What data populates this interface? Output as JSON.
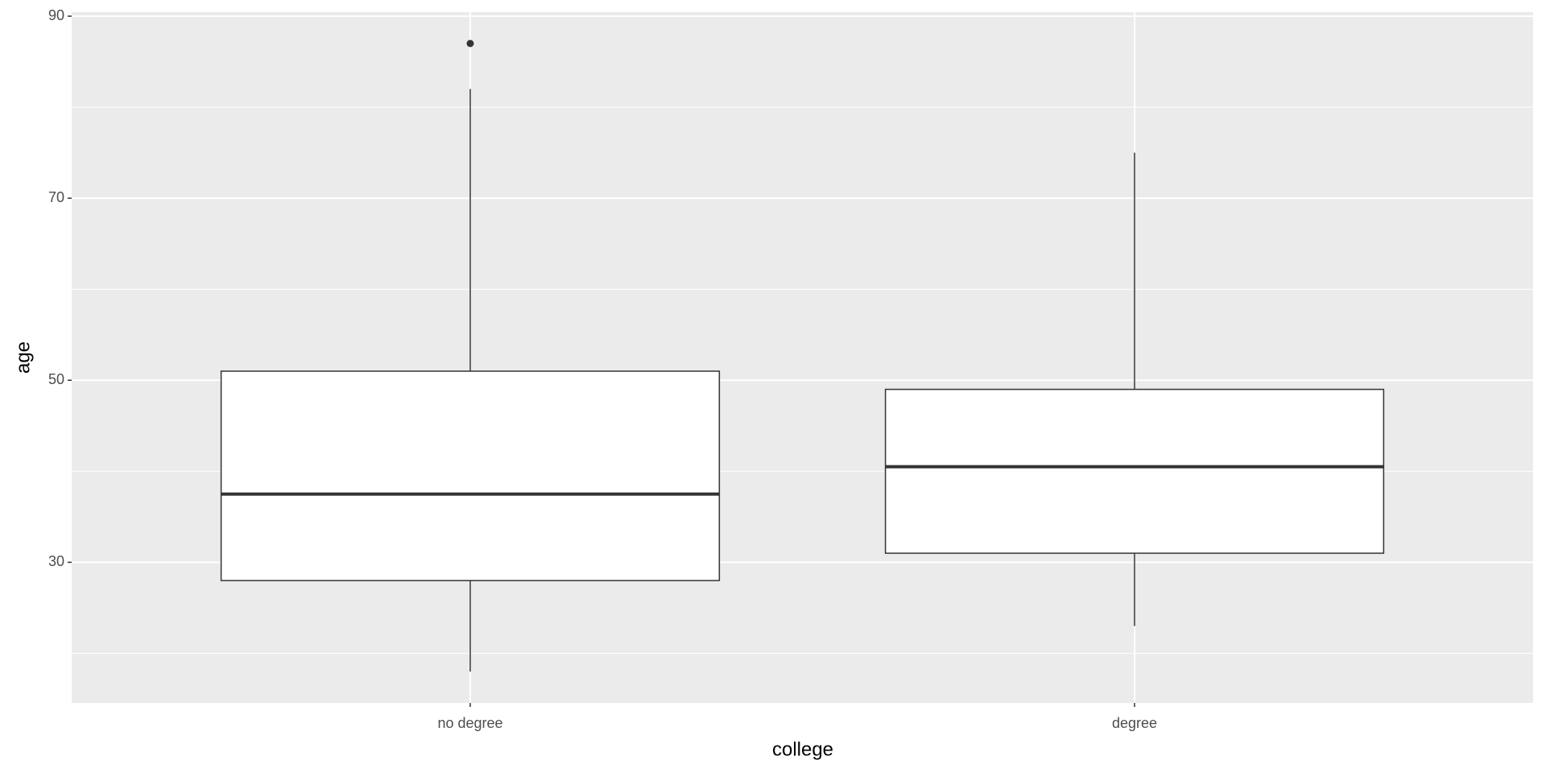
{
  "chart_data": {
    "type": "box",
    "x_label": "college",
    "y_label": "age",
    "categories": [
      "no degree",
      "degree"
    ],
    "boxes": [
      {
        "whisker_low": 18,
        "q1": 28,
        "median": 37.5,
        "q3": 51,
        "whisker_high": 82,
        "outliers": [
          87
        ]
      },
      {
        "whisker_low": 23,
        "q1": 31,
        "median": 40.5,
        "q3": 49,
        "whisker_high": 75,
        "outliers": []
      }
    ],
    "fill": "#ffffff",
    "stroke": "#333333",
    "background": "#ebebeb",
    "ylim": [
      14.55,
      90.45
    ],
    "yticks": [
      30,
      50,
      70,
      90
    ],
    "minor_yticks": [
      20,
      40,
      60,
      80
    ],
    "grid": true
  }
}
